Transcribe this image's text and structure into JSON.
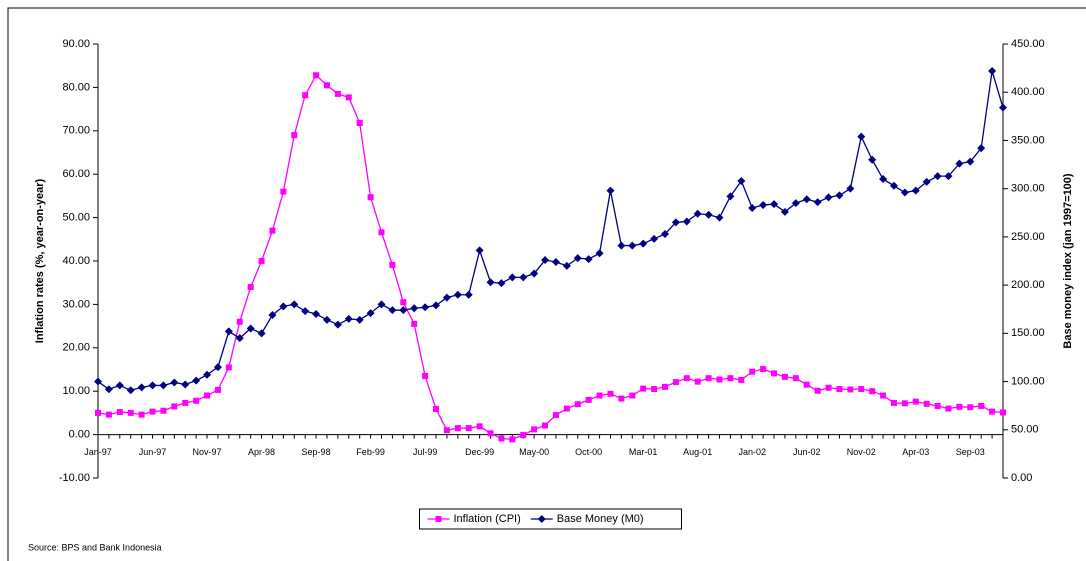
{
  "chart_data": {
    "type": "line",
    "ylabel": "Inflation rates (%, year-on-year)",
    "y2label": "Base money index (jan 1997=100)",
    "source": "Source: BPS and Bank Indonesia",
    "legend": "bottom",
    "categories": [
      "Jan-97",
      null,
      null,
      null,
      null,
      "Jun-97",
      null,
      null,
      null,
      null,
      "Nov-97",
      null,
      null,
      null,
      null,
      "Apr-98",
      null,
      null,
      null,
      null,
      "Sep-98",
      null,
      null,
      null,
      null,
      "Feb-99",
      null,
      null,
      null,
      null,
      "Jul-99",
      null,
      null,
      null,
      null,
      "Dec-99",
      null,
      null,
      null,
      null,
      "May-00",
      null,
      null,
      null,
      null,
      "Oct-00",
      null,
      null,
      null,
      null,
      "Mar-01",
      null,
      null,
      null,
      null,
      "Aug-01",
      null,
      null,
      null,
      null,
      "Jan-02",
      null,
      null,
      null,
      null,
      "Jun-02",
      null,
      null,
      null,
      null,
      "Nov-02",
      null,
      null,
      null,
      null,
      "Apr-03",
      null,
      null,
      null,
      null,
      "Sep-03",
      null,
      null,
      null
    ],
    "series": [
      {
        "name": "Inflation (CPI)",
        "color": "#ff00ff",
        "marker": "square",
        "values": [
          5.0,
          4.6,
          5.2,
          5.0,
          4.6,
          5.3,
          5.5,
          6.5,
          7.3,
          7.8,
          9.0,
          10.3,
          15.5,
          26,
          34,
          40,
          47,
          56,
          69,
          78.2,
          82.8,
          80.5,
          78.5,
          77.7,
          71.8,
          54.7,
          46.6,
          39.1,
          30.5,
          25.5,
          13.5,
          5.9,
          1.0,
          1.5,
          1.5,
          1.9,
          0.3,
          -0.9,
          -1.1,
          -0.1,
          1.2,
          2.1,
          4.5,
          6.0,
          7.0,
          8.0,
          9.0,
          9.4,
          8.3,
          9.0,
          10.6,
          10.5,
          11.0,
          12.1,
          13.0,
          12.2,
          13.0,
          12.7,
          13.0,
          12.6,
          14.5,
          15.1,
          14.1,
          13.3,
          13.0,
          11.5,
          10.1,
          10.8,
          10.5,
          10.4,
          10.5,
          10.0,
          9.0,
          7.3,
          7.2,
          7.6,
          7.1,
          6.6,
          6.0,
          6.4,
          6.3,
          6.6,
          5.3,
          5.1
        ]
      },
      {
        "name": "Base Money (M0)",
        "color": "#000080",
        "marker": "diamond",
        "axis": "y2",
        "values": [
          100,
          92,
          96,
          91,
          94,
          96,
          96,
          99,
          97,
          101,
          107,
          115,
          152,
          145,
          155,
          150,
          169,
          178,
          180,
          173,
          170,
          164,
          159,
          165,
          164,
          171,
          180,
          174,
          174,
          176,
          177,
          179,
          187,
          190,
          190,
          236,
          203,
          202,
          208,
          208,
          212,
          226,
          224,
          220,
          228,
          227,
          233,
          298,
          241,
          241,
          243,
          248,
          253,
          265,
          266,
          274,
          273,
          270,
          292,
          308,
          280,
          283,
          284,
          276,
          285,
          289,
          286,
          291,
          293,
          300,
          354,
          330,
          310,
          303,
          296,
          298,
          307,
          313,
          313,
          326,
          328,
          342,
          422,
          384
        ]
      }
    ],
    "ylim": [
      -10,
      90
    ],
    "yticks": [
      {
        "value": -10,
        "label": "-10.00"
      },
      {
        "value": 0,
        "label": "0.00"
      },
      {
        "value": 10,
        "label": "10.00"
      },
      {
        "value": 20,
        "label": "20.00"
      },
      {
        "value": 30,
        "label": "30.00"
      },
      {
        "value": 40,
        "label": "40.00"
      },
      {
        "value": 50,
        "label": "50.00"
      },
      {
        "value": 60,
        "label": "60.00"
      },
      {
        "value": 70,
        "label": "70.00"
      },
      {
        "value": 80,
        "label": "80.00"
      },
      {
        "value": 90,
        "label": "90.00"
      }
    ],
    "y2lim": [
      0,
      450
    ],
    "y2ticks": [
      {
        "value": 0,
        "label": "0.00"
      },
      {
        "value": 50,
        "label": "50.00"
      },
      {
        "value": 100,
        "label": "100.00"
      },
      {
        "value": 150,
        "label": "150.00"
      },
      {
        "value": 200,
        "label": "200.00"
      },
      {
        "value": 250,
        "label": "250.00"
      },
      {
        "value": 300,
        "label": "300.00"
      },
      {
        "value": 350,
        "label": "350.00"
      },
      {
        "value": 400,
        "label": "400.00"
      },
      {
        "value": 450,
        "label": "450.00"
      }
    ]
  }
}
